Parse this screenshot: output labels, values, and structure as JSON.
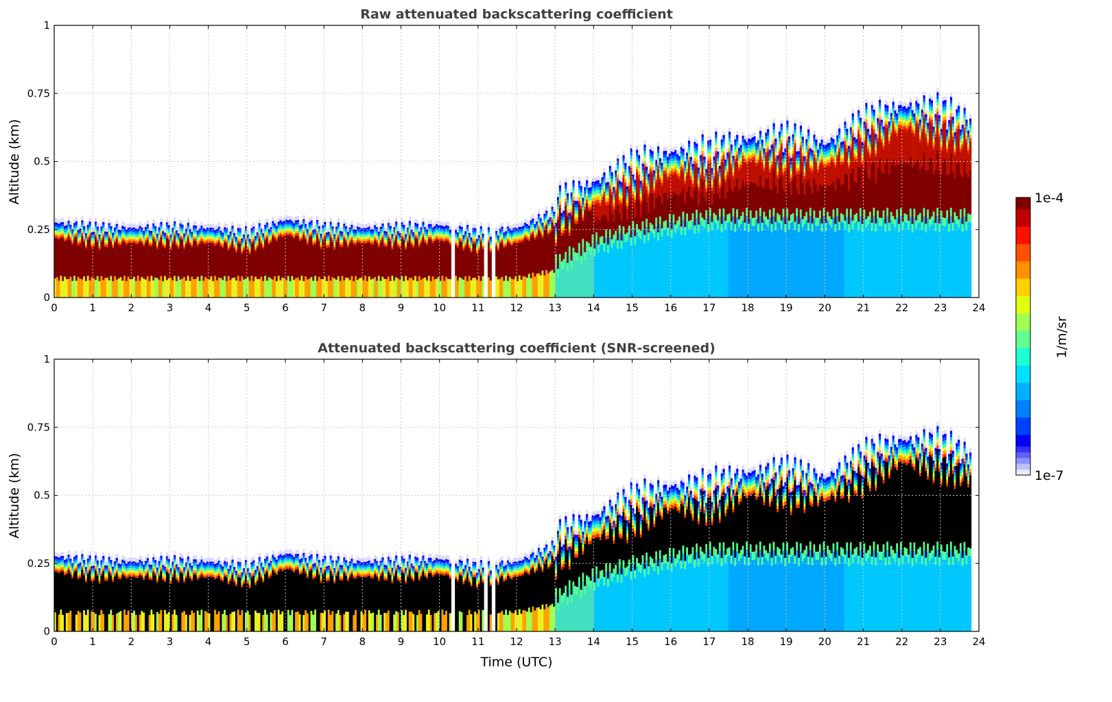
{
  "chart_data": [
    {
      "type": "heatmap",
      "title": "Raw attenuated backscattering coefficient",
      "xlabel": "",
      "ylabel": "Altitude (km)",
      "xlim": [
        0,
        24
      ],
      "ylim": [
        0,
        1
      ],
      "xticks": [
        "0",
        "1",
        "2",
        "3",
        "4",
        "5",
        "6",
        "7",
        "8",
        "9",
        "10",
        "11",
        "12",
        "13",
        "14",
        "15",
        "16",
        "17",
        "18",
        "19",
        "20",
        "21",
        "22",
        "23",
        "24"
      ],
      "yticks": [
        "0",
        "0.25",
        "0.5",
        "0.75",
        "1"
      ],
      "grid": true,
      "layer_color": "#7f0000"
    },
    {
      "type": "heatmap",
      "title": "Attenuated backscattering coefficient (SNR-screened)",
      "xlabel": "Time (UTC)",
      "ylabel": "Altitude (km)",
      "xlim": [
        0,
        24
      ],
      "ylim": [
        0,
        1
      ],
      "xticks": [
        "0",
        "1",
        "2",
        "3",
        "4",
        "5",
        "6",
        "7",
        "8",
        "9",
        "10",
        "11",
        "12",
        "13",
        "14",
        "15",
        "16",
        "17",
        "18",
        "19",
        "20",
        "21",
        "22",
        "23",
        "24"
      ],
      "yticks": [
        "0",
        "0.25",
        "0.5",
        "0.75",
        "1"
      ],
      "grid": true,
      "layer_color": "#000000"
    }
  ],
  "profile": {
    "time_utc": [
      0,
      1,
      2,
      3,
      4,
      5,
      6,
      7,
      8,
      9,
      10,
      11,
      12,
      13,
      14,
      15,
      16,
      17,
      18,
      19,
      20,
      21,
      22,
      23,
      23.8
    ],
    "layer_top_km": [
      0.22,
      0.2,
      0.2,
      0.2,
      0.2,
      0.18,
      0.23,
      0.2,
      0.2,
      0.2,
      0.21,
      0.18,
      0.2,
      0.26,
      0.34,
      0.4,
      0.45,
      0.45,
      0.5,
      0.5,
      0.48,
      0.56,
      0.62,
      0.6,
      0.56
    ],
    "layer_base_km": [
      0.07,
      0.07,
      0.07,
      0.07,
      0.07,
      0.07,
      0.07,
      0.07,
      0.07,
      0.07,
      0.07,
      0.07,
      0.07,
      0.1,
      0.18,
      0.22,
      0.25,
      0.27,
      0.27,
      0.27,
      0.27,
      0.27,
      0.27,
      0.27,
      0.27
    ],
    "data_end_utc": 23.8,
    "gaps_utc": [
      [
        10.27,
        10.4
      ],
      [
        11.15,
        11.22
      ],
      [
        11.33,
        11.45
      ]
    ]
  },
  "colorbar": {
    "label": "1/m/sr",
    "max_label": "1e-4",
    "min_label": "1e-7",
    "scale": "log",
    "range": [
      1e-07,
      0.0001
    ]
  }
}
